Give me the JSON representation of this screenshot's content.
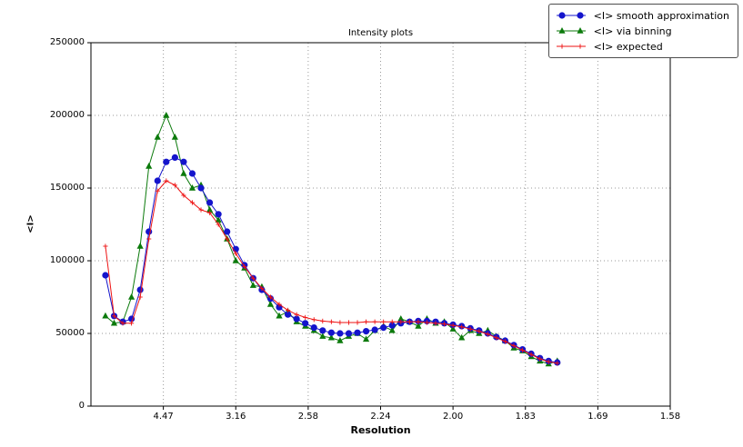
{
  "window": {
    "background": "#ffffff"
  },
  "chart_data": {
    "type": "line",
    "title": "Intensity plots",
    "xlabel": "Resolution",
    "ylabel": "<I>",
    "grid": "dotted",
    "legend_position": "top-right",
    "xlim": [
      0,
      0.4
    ],
    "ylim": [
      0,
      250000
    ],
    "xticks": [
      {
        "value": 0.05,
        "label": "4.47"
      },
      {
        "value": 0.1,
        "label": "3.16"
      },
      {
        "value": 0.15,
        "label": "2.58"
      },
      {
        "value": 0.2,
        "label": "2.24"
      },
      {
        "value": 0.25,
        "label": "2.00"
      },
      {
        "value": 0.3,
        "label": "1.83"
      },
      {
        "value": 0.35,
        "label": "1.69"
      },
      {
        "value": 0.4,
        "label": "1.58"
      }
    ],
    "yticks": [
      0,
      50000,
      100000,
      150000,
      200000,
      250000
    ],
    "x": [
      0.01,
      0.016,
      0.022,
      0.028,
      0.034,
      0.04,
      0.046,
      0.052,
      0.058,
      0.064,
      0.07,
      0.076,
      0.082,
      0.088,
      0.094,
      0.1,
      0.106,
      0.112,
      0.118,
      0.124,
      0.13,
      0.136,
      0.142,
      0.148,
      0.154,
      0.16,
      0.166,
      0.172,
      0.178,
      0.184,
      0.19,
      0.196,
      0.202,
      0.208,
      0.214,
      0.22,
      0.226,
      0.232,
      0.238,
      0.244,
      0.25,
      0.256,
      0.262,
      0.268,
      0.274,
      0.28,
      0.286,
      0.292,
      0.298,
      0.304,
      0.31,
      0.316,
      0.322
    ],
    "series": [
      {
        "name": "<I> smooth approximation",
        "color": "#1414cc",
        "marker": "circle",
        "values": [
          90000,
          62000,
          58000,
          60000,
          80000,
          120000,
          155000,
          168000,
          171000,
          168000,
          160000,
          150000,
          140000,
          132000,
          120000,
          108000,
          97000,
          88000,
          80000,
          74000,
          68000,
          63000,
          60000,
          57000,
          54000,
          52000,
          50500,
          50000,
          50000,
          50500,
          51500,
          52500,
          54000,
          55500,
          57000,
          58000,
          58500,
          58500,
          58000,
          57000,
          56000,
          55000,
          53500,
          52000,
          50000,
          47500,
          45000,
          42000,
          39000,
          36000,
          33000,
          31000,
          30000
        ]
      },
      {
        "name": "<I> via binning",
        "color": "#0b7a0b",
        "marker": "triangle",
        "values": [
          62000,
          57000,
          58000,
          75000,
          110000,
          165000,
          185000,
          200000,
          185000,
          160000,
          150000,
          152000,
          135000,
          128000,
          115000,
          100000,
          95000,
          83000,
          82000,
          70000,
          62000,
          65000,
          58000,
          55000,
          52000,
          48000,
          47000,
          45000,
          48000,
          50000,
          46000,
          52000,
          55000,
          52000,
          60000,
          58000,
          55000,
          60000,
          57000,
          58000,
          53000,
          47000,
          52000,
          50000,
          52000,
          48000,
          45000,
          40000,
          38000,
          34000,
          31000,
          29000,
          31000
        ]
      },
      {
        "name": "<I> expected",
        "color": "#ee1111",
        "marker": "plus",
        "values": [
          110000,
          62000,
          57000,
          57000,
          75000,
          115000,
          148000,
          155000,
          152000,
          145000,
          140000,
          135000,
          133000,
          125000,
          115000,
          105000,
          96000,
          88000,
          81000,
          75000,
          70000,
          66000,
          63000,
          61000,
          59500,
          58500,
          58000,
          57500,
          57500,
          57500,
          58000,
          58000,
          58000,
          58000,
          58000,
          58000,
          58000,
          57500,
          57000,
          56500,
          55500,
          54500,
          53000,
          51500,
          49500,
          47000,
          44500,
          41500,
          38500,
          35500,
          32500,
          30500,
          29500
        ]
      }
    ]
  }
}
